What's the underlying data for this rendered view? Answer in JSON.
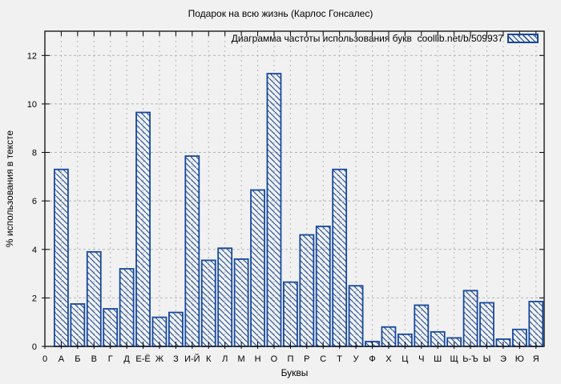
{
  "colors": {
    "background": "#f1f1f1",
    "bar_stroke": "#16489c",
    "hatch": "#16489c",
    "grid": "#b4b4b4",
    "border": "#1a1a1a",
    "text": "#000000"
  },
  "chart_data": {
    "type": "bar",
    "title": "Подарок на всю жизнь (Карлос Гонсалес)",
    "legend_label": "Диаграмма частоты использования букв  coollib.net/b/509937",
    "legend_position": "top-right",
    "xlabel": "Буквы",
    "ylabel": "% использования в тексте",
    "x_origin_label": "0",
    "categories": [
      "А",
      "Б",
      "В",
      "Г",
      "Д",
      "Е-Ё",
      "Ж",
      "З",
      "И-Й",
      "К",
      "Л",
      "М",
      "Н",
      "О",
      "П",
      "Р",
      "С",
      "Т",
      "У",
      "Ф",
      "Х",
      "Ц",
      "Ч",
      "Ш",
      "Щ",
      "Ь-Ъ",
      "Ы",
      "Э",
      "Ю",
      "Я"
    ],
    "values": [
      7.3,
      1.75,
      3.9,
      1.55,
      3.2,
      9.65,
      1.2,
      1.4,
      7.85,
      3.55,
      4.05,
      3.6,
      6.45,
      11.25,
      2.65,
      4.6,
      4.95,
      7.3,
      2.5,
      0.2,
      0.8,
      0.5,
      1.7,
      0.6,
      0.35,
      2.3,
      1.8,
      0.3,
      0.7,
      1.85
    ],
    "ylim": [
      0,
      13
    ],
    "yticks": [
      0,
      2,
      4,
      6,
      8,
      10,
      12
    ],
    "grid": true,
    "hatch_style": "diagonal-backslash"
  }
}
